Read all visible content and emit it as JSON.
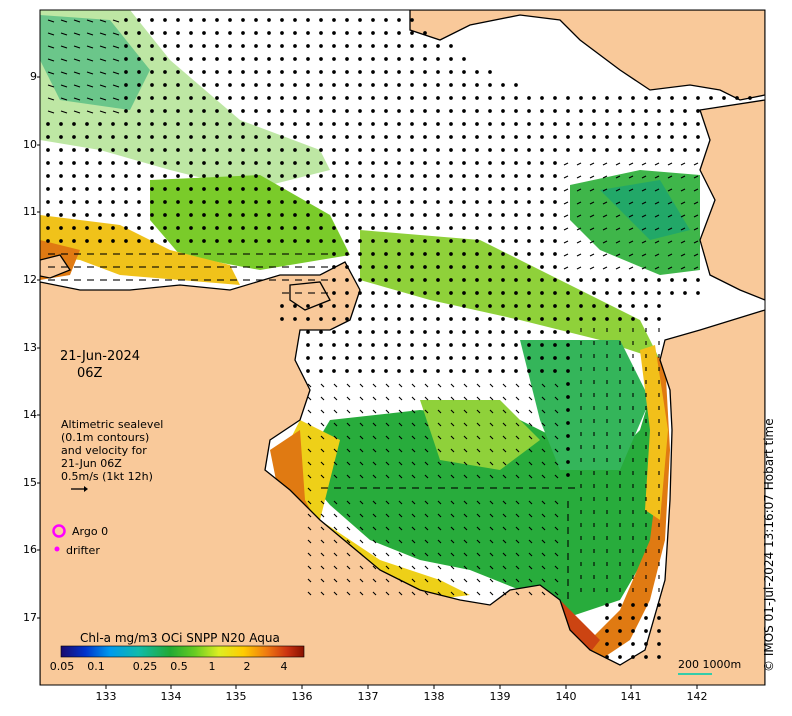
{
  "map": {
    "date": "21-Jun-2024",
    "time": "06Z",
    "altimetry_note": [
      "Altimetric sealevel",
      "(0.1m contours)",
      "and velocity for",
      "21-Jun 06Z",
      "0.5m/s (1kt 12h)"
    ],
    "legend": {
      "argo_label": "Argo 0",
      "drifter_label": "drifter",
      "argo_color": "#ff00ff",
      "drifter_color": "#ff00ff"
    },
    "colorbar": {
      "title": "Chl-a mg/m3 OCi SNPP N20 Aqua",
      "ticks": [
        "0.05",
        "0.1",
        "0.25",
        "0.5",
        "1",
        "2",
        "4"
      ],
      "colors": [
        "#1a0a6e",
        "#0033cc",
        "#0099ee",
        "#11bbaa",
        "#22aa33",
        "#66cc22",
        "#ddee22",
        "#ffcc00",
        "#ee7711",
        "#cc3311",
        "#881100"
      ]
    },
    "y_axis_labels": [
      "9",
      "10",
      "11",
      "12",
      "13",
      "14",
      "15",
      "16",
      "17"
    ],
    "x_axis_labels": [
      "133",
      "134",
      "135",
      "136",
      "137",
      "138",
      "139",
      "140",
      "141",
      "142"
    ],
    "scale_label": "200  1000m",
    "credit": "© IMOS 01-Jul-2024 13:16:07 Hobart time",
    "colors": {
      "land": "#f9c99a",
      "scale_bar": "#33ccaa",
      "arrow": "#000000"
    }
  }
}
